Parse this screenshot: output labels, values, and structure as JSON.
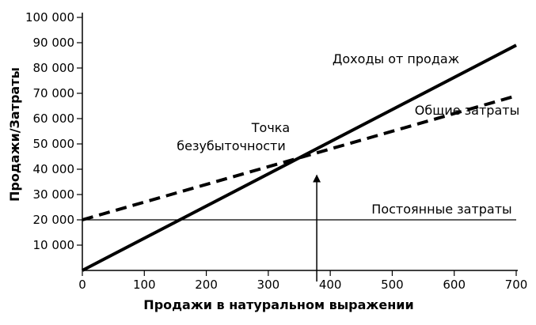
{
  "chart_data": {
    "type": "line",
    "title": "",
    "xlabel": "Продажи в натуральном выражении",
    "ylabel": "Продажи/Затраты",
    "xlim": [
      0,
      700
    ],
    "ylim": [
      0,
      100000
    ],
    "x_ticks": [
      0,
      100,
      200,
      300,
      400,
      500,
      600,
      700
    ],
    "x_tick_labels": [
      "0",
      "100",
      "200",
      "300",
      "400",
      "500",
      "600",
      "700"
    ],
    "y_ticks": [
      10000,
      20000,
      30000,
      40000,
      50000,
      60000,
      70000,
      80000,
      90000,
      100000
    ],
    "y_tick_labels": [
      "10 000",
      "20 000",
      "30 000",
      "40 000",
      "50 000",
      "60 000",
      "70 000",
      "80 000",
      "90 000",
      "100 000"
    ],
    "grid": false,
    "legend": "none",
    "series": [
      {
        "name": "Доходы от продаж",
        "style": "solid",
        "color": "#000000",
        "x": [
          0,
          700
        ],
        "y": [
          0,
          89000
        ]
      },
      {
        "name": "Общие затраты",
        "style": "dashed",
        "color": "#000000",
        "x": [
          0,
          700
        ],
        "y": [
          20000,
          69000
        ]
      },
      {
        "name": "Постоянные затраты",
        "style": "thin",
        "color": "#000000",
        "x": [
          0,
          700
        ],
        "y": [
          20000,
          20000
        ]
      }
    ],
    "annotations": [
      {
        "text_lines": [
          "Точка",
          "безубыточности"
        ],
        "x": 345,
        "y": 44500,
        "arrow_from": [
          345,
          0
        ],
        "arrow_to": [
          345,
          44500
        ]
      }
    ]
  }
}
